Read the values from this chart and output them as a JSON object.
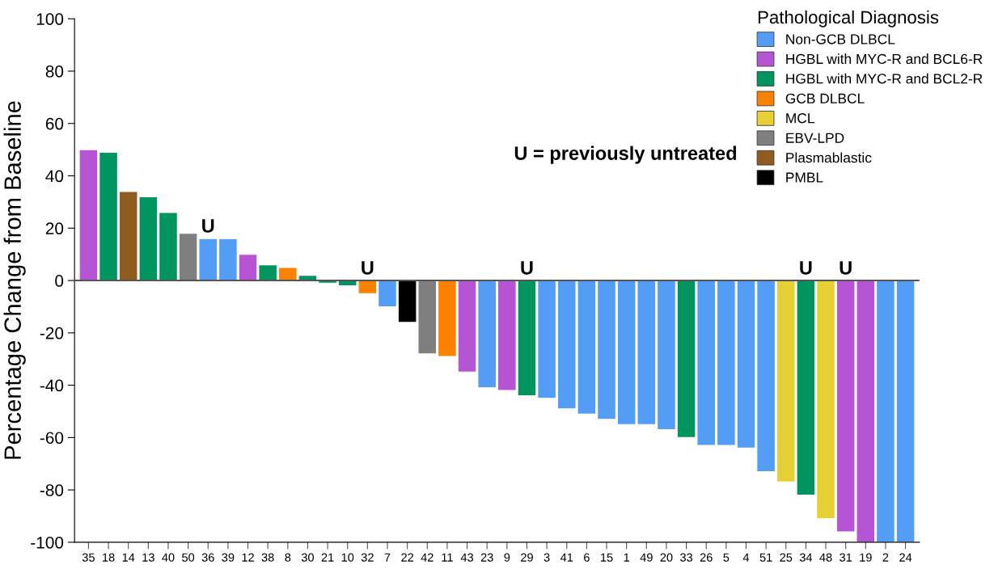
{
  "chart_data": {
    "type": "bar",
    "stacked": true,
    "ylabel": "Percentage Change from Baseline",
    "legend_title": "Pathological Diagnosis",
    "legend": "top right",
    "grid": false,
    "categories": [
      "35",
      "18",
      "14",
      "13",
      "40",
      "50",
      "36",
      "39",
      "12",
      "38",
      "8",
      "30",
      "21",
      "10",
      "32",
      "7",
      "22",
      "42",
      "11",
      "43",
      "23",
      "9",
      "29",
      "3",
      "41",
      "6",
      "15",
      "1",
      "49",
      "20",
      "33",
      "26",
      "5",
      "4",
      "51",
      "25",
      "34",
      "48",
      "31",
      "19",
      "2",
      "24"
    ],
    "ylim": [
      -100,
      100
    ],
    "yticks": [
      -100,
      -80,
      -60,
      -40,
      -20,
      0,
      20,
      40,
      60,
      80,
      100
    ],
    "ref_lines": [
      {
        "axis": "y",
        "value": 0,
        "color": "#555555"
      }
    ],
    "series": [
      {
        "name": "Non-GCB DLBCL",
        "color": "#539df7",
        "values": [
          null,
          null,
          null,
          null,
          null,
          null,
          16,
          16,
          null,
          null,
          null,
          null,
          null,
          null,
          null,
          -10,
          null,
          null,
          null,
          null,
          -41,
          null,
          null,
          -45,
          -49,
          -51,
          -53,
          -55,
          -55,
          -57,
          null,
          -63,
          -63,
          -64,
          -73,
          null,
          null,
          null,
          null,
          null,
          -100,
          -100
        ]
      },
      {
        "name": "HGBL with MYC-R and BCL6-R",
        "color": "#b655d3",
        "values": [
          50,
          null,
          null,
          null,
          null,
          null,
          null,
          null,
          10,
          null,
          null,
          null,
          null,
          null,
          null,
          null,
          null,
          null,
          null,
          -35,
          null,
          -42,
          null,
          null,
          null,
          null,
          null,
          null,
          null,
          null,
          null,
          null,
          null,
          null,
          null,
          null,
          null,
          null,
          -96,
          -100,
          null,
          null
        ]
      },
      {
        "name": "HGBL with MYC-R and BCL2-R",
        "color": "#00955f",
        "values": [
          null,
          49,
          null,
          32,
          26,
          null,
          null,
          null,
          null,
          6,
          null,
          2,
          -1,
          -2,
          null,
          null,
          null,
          null,
          null,
          null,
          null,
          null,
          -44,
          null,
          null,
          null,
          null,
          null,
          null,
          null,
          -60,
          null,
          null,
          null,
          null,
          null,
          -82,
          null,
          null,
          null,
          null,
          null
        ]
      },
      {
        "name": "GCB DLBCL",
        "color": "#fb8200",
        "values": [
          null,
          null,
          null,
          null,
          null,
          null,
          null,
          null,
          null,
          null,
          5,
          null,
          null,
          null,
          -5,
          null,
          null,
          null,
          -29,
          null,
          null,
          null,
          null,
          null,
          null,
          null,
          null,
          null,
          null,
          null,
          null,
          null,
          null,
          null,
          null,
          null,
          null,
          null,
          null,
          null,
          null,
          null
        ]
      },
      {
        "name": "MCL",
        "color": "#e6d035",
        "values": [
          null,
          null,
          null,
          null,
          null,
          null,
          null,
          null,
          null,
          null,
          null,
          null,
          null,
          null,
          null,
          null,
          null,
          null,
          null,
          null,
          null,
          null,
          null,
          null,
          null,
          null,
          null,
          null,
          null,
          null,
          null,
          null,
          null,
          null,
          null,
          -77,
          null,
          -91,
          null,
          null,
          null,
          null
        ]
      },
      {
        "name": "EBV-LPD",
        "color": "#7f7f7f",
        "values": [
          null,
          null,
          null,
          null,
          null,
          18,
          null,
          null,
          null,
          null,
          null,
          null,
          null,
          null,
          null,
          null,
          null,
          -28,
          null,
          null,
          null,
          null,
          null,
          null,
          null,
          null,
          null,
          null,
          null,
          null,
          null,
          null,
          null,
          null,
          null,
          null,
          null,
          null,
          null,
          null,
          null,
          null
        ]
      },
      {
        "name": "Plasmablastic",
        "color": "#8e5c1e",
        "values": [
          null,
          null,
          34,
          null,
          null,
          null,
          null,
          null,
          null,
          null,
          null,
          null,
          null,
          null,
          null,
          null,
          null,
          null,
          null,
          null,
          null,
          null,
          null,
          null,
          null,
          null,
          null,
          null,
          null,
          null,
          null,
          null,
          null,
          null,
          null,
          null,
          null,
          null,
          null,
          null,
          null,
          null
        ]
      },
      {
        "name": "PMBL",
        "color": "#000000",
        "values": [
          null,
          null,
          null,
          null,
          null,
          null,
          null,
          null,
          null,
          null,
          null,
          null,
          null,
          null,
          null,
          null,
          -16,
          null,
          null,
          null,
          null,
          null,
          null,
          null,
          null,
          null,
          null,
          null,
          null,
          null,
          null,
          null,
          null,
          null,
          null,
          null,
          null,
          null,
          null,
          null,
          null,
          null
        ]
      }
    ],
    "annotations": [
      "U = previously untreated",
      {
        "text": "U",
        "x": "36",
        "y": 16
      },
      {
        "text": "U",
        "x": "32",
        "y": 0
      },
      {
        "text": "U",
        "x": "29",
        "y": 0
      },
      {
        "text": "U",
        "x": "34",
        "y": 0
      },
      {
        "text": "U",
        "x": "31",
        "y": 0
      }
    ]
  }
}
